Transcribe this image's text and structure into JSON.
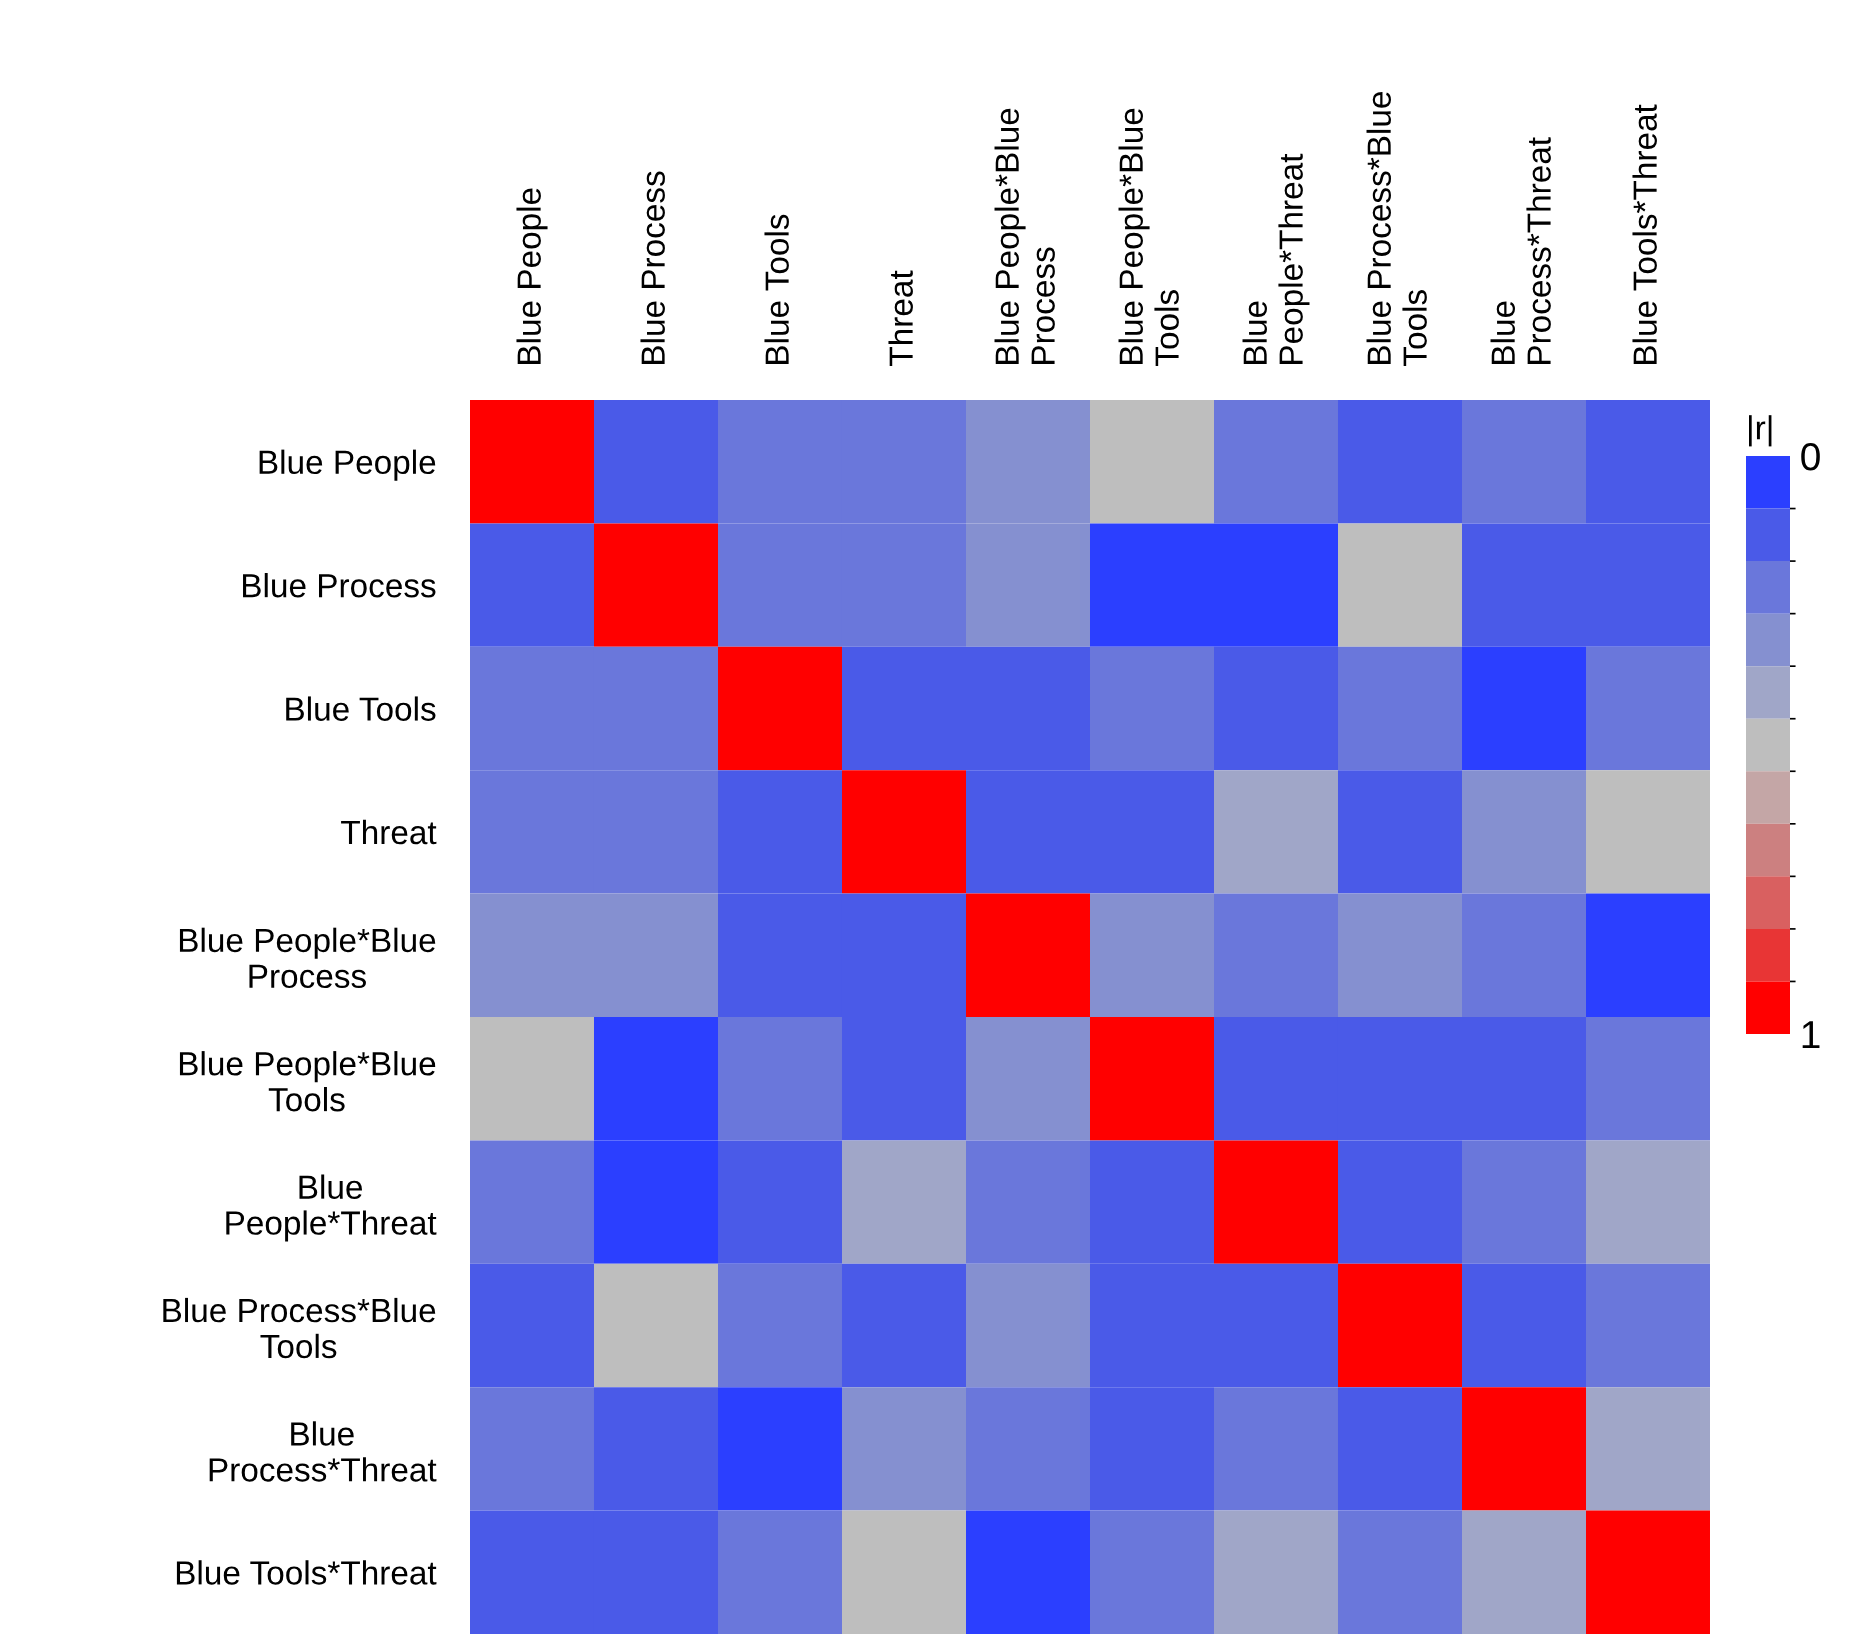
{
  "chart_data": {
    "type": "heatmap",
    "clabel": "|r|",
    "categories": [
      "Blue People",
      "Blue Process",
      "Blue Tools",
      "Threat",
      "Blue People*Blue\nProcess",
      "Blue People*Blue\nTools",
      "Blue\nPeople*Threat",
      "Blue Process*Blue\nTools",
      "Blue\nProcess*Threat",
      "Blue Tools*Threat"
    ],
    "y_categories": [
      "Blue People",
      "Blue Process",
      "Blue Tools",
      "Threat",
      "Blue People*Blue\nProcess",
      "Blue People*Blue\nTools",
      "Blue\nPeople*Threat",
      "Blue Process*Blue\nTools",
      "Blue\nProcess*Threat",
      "Blue Tools*Threat"
    ],
    "cells": [
      [
        1,
        0.1,
        0.2,
        0.2,
        0.3,
        0.5,
        0.2,
        0.1,
        0.2,
        0.1
      ],
      [
        0.1,
        1,
        0.2,
        0.2,
        0.3,
        0.0,
        0.0,
        0.5,
        0.1,
        0.1
      ],
      [
        0.2,
        0.2,
        1,
        0.1,
        0.1,
        0.2,
        0.1,
        0.2,
        0.0,
        0.2
      ],
      [
        0.2,
        0.2,
        0.1,
        1,
        0.1,
        0.1,
        0.4,
        0.1,
        0.3,
        0.5
      ],
      [
        0.3,
        0.3,
        0.1,
        0.1,
        1,
        0.3,
        0.2,
        0.3,
        0.2,
        0.0
      ],
      [
        0.5,
        0.0,
        0.2,
        0.1,
        0.3,
        1,
        0.1,
        0.1,
        0.1,
        0.2
      ],
      [
        0.2,
        0.0,
        0.1,
        0.4,
        0.2,
        0.1,
        1,
        0.1,
        0.2,
        0.4
      ],
      [
        0.1,
        0.5,
        0.2,
        0.1,
        0.3,
        0.1,
        0.1,
        1,
        0.1,
        0.2
      ],
      [
        0.2,
        0.1,
        0.0,
        0.3,
        0.2,
        0.1,
        0.2,
        0.1,
        1,
        0.4
      ],
      [
        0.1,
        0.1,
        0.2,
        0.5,
        0.0,
        0.2,
        0.4,
        0.2,
        0.4,
        1
      ]
    ],
    "colors": [
      "#2b3fff",
      "#4a5ae8",
      "#6a77db",
      "#8590d0",
      "#a0a6c8",
      "#bebebe",
      "#c4a6a6",
      "#cc8080",
      "#d96060",
      "#e83535",
      "#ff0000"
    ],
    "clim": [
      0,
      1
    ],
    "cticks": [
      0,
      1
    ]
  }
}
